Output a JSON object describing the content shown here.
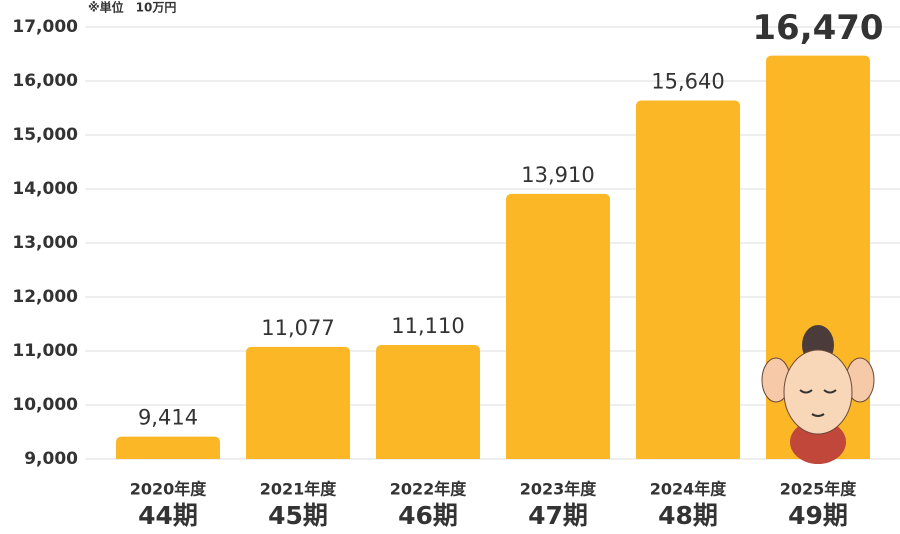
{
  "chart_data": {
    "type": "bar",
    "note": "※単位　10万円",
    "categories": [
      "2020年度",
      "2021年度",
      "2022年度",
      "2023年度",
      "2024年度",
      "2025年度"
    ],
    "periods": [
      "44期",
      "45期",
      "46期",
      "47期",
      "48期",
      "49期"
    ],
    "values": [
      9414,
      11077,
      11110,
      13910,
      15640,
      16470
    ],
    "value_labels": [
      "9,414",
      "11,077",
      "11,110",
      "13,910",
      "15,640",
      "16,470"
    ],
    "color": "#fbb726",
    "ylim": [
      9000,
      17000
    ],
    "yticks": [
      {
        "value": 9000,
        "label": "9,000"
      },
      {
        "value": 10000,
        "label": "10,000"
      },
      {
        "value": 11000,
        "label": "11,000"
      },
      {
        "value": 12000,
        "label": "12,000"
      },
      {
        "value": 13000,
        "label": "13,000"
      },
      {
        "value": 14000,
        "label": "14,000"
      },
      {
        "value": 15000,
        "label": "15,000"
      },
      {
        "value": 16000,
        "label": "16,000"
      },
      {
        "value": 17000,
        "label": "17,000"
      }
    ],
    "grid": true
  }
}
